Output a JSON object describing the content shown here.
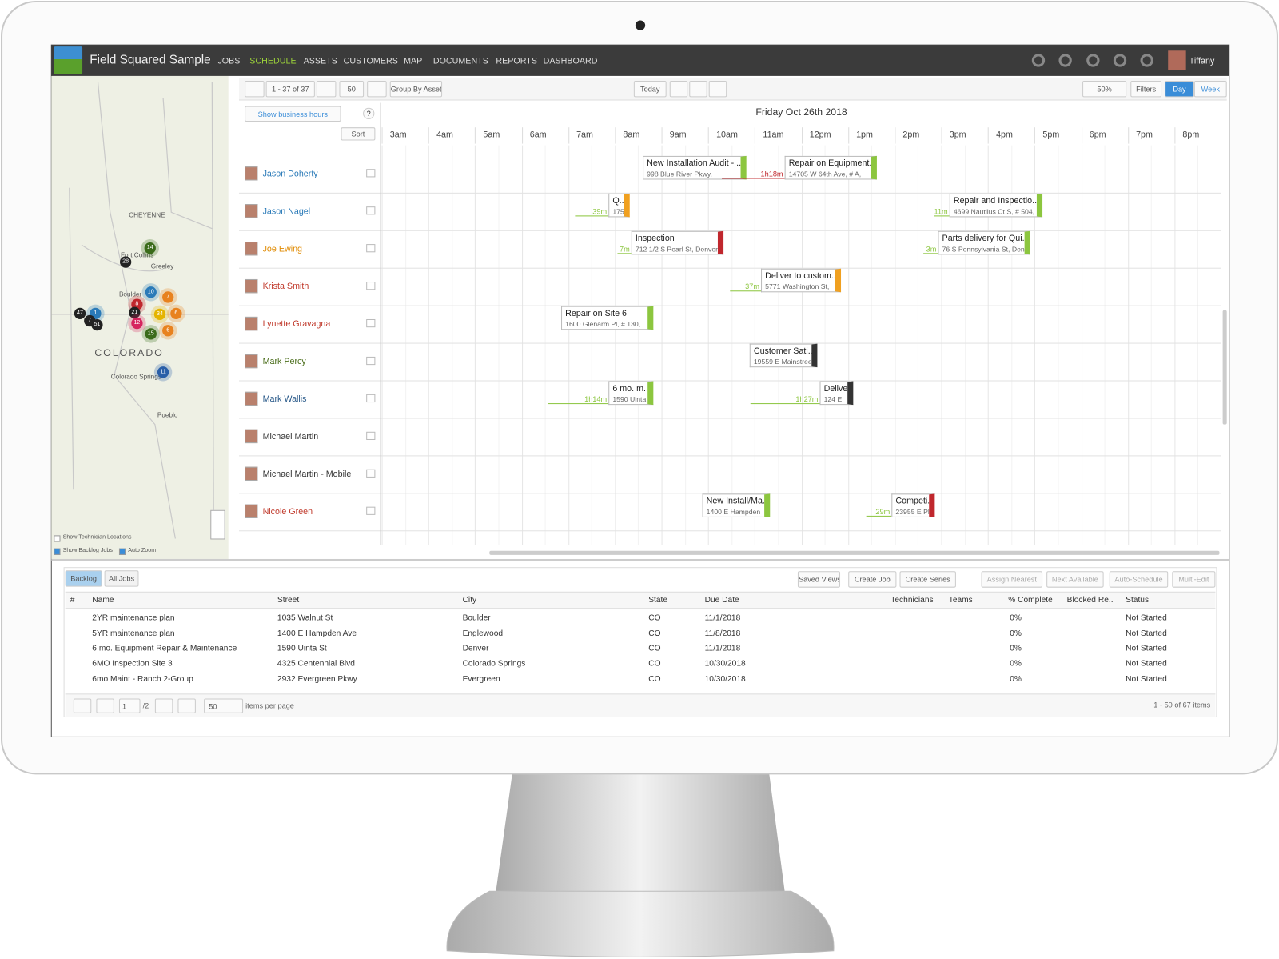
{
  "nav": {
    "brand": "Field Squared Sample",
    "items": [
      "JOBS",
      "SCHEDULE",
      "ASSETS",
      "CUSTOMERS",
      "MAP",
      "DOCUMENTS",
      "REPORTS",
      "DASHBOARD"
    ],
    "user": "Tiffany"
  },
  "map": {
    "places": [
      "CHEYENNE",
      "Fort Collins",
      "Greeley",
      "Boulder",
      "COLORADO",
      "Colorado Springs",
      "Pueblo"
    ],
    "clusters": [
      14,
      28,
      10,
      7,
      8,
      21,
      34,
      6,
      12,
      15,
      6,
      47,
      1,
      7,
      51,
      11
    ],
    "options": [
      "Show Technician Locations",
      "Show Backlog Jobs",
      "Auto Zoom"
    ]
  },
  "toolbar": {
    "range": "1 - 37 of 37",
    "page_size": 50,
    "group_by": "Group By Asset",
    "today": "Today",
    "zoom": "50%",
    "filters": "Filters",
    "views": [
      "Day",
      "Week"
    ]
  },
  "schedule": {
    "business_hours": "Show business hours",
    "help": "?",
    "sort": "Sort",
    "date": "Friday Oct 26th 2018",
    "hours": [
      "3am",
      "4am",
      "5am",
      "6am",
      "7am",
      "8am",
      "9am",
      "10am",
      "11am",
      "12pm",
      "1pm",
      "2pm",
      "3pm",
      "4pm",
      "5pm",
      "6pm",
      "7pm",
      "8pm"
    ],
    "technicians": [
      "Jason Doherty",
      "Jason Nagel",
      "Joe Ewing",
      "Krista Smith",
      "Lynette Gravagna",
      "Mark Percy",
      "Mark Wallis",
      "Michael Martin",
      "Michael Martin - Mobile",
      "Nicole Green"
    ],
    "jobs": [
      {
        "title": "New Installation Audit - ..",
        "address": "998 Blue River Pkwy,"
      },
      {
        "title": "Repair on Equipment..",
        "address": "14705 W 64th Ave, # A,",
        "travel": "1h18m"
      },
      {
        "title": "Q..",
        "address": "175",
        "travel": "39m"
      },
      {
        "title": "Repair and Inspectio..",
        "address": "4699 Nautilus Ct S, # 504,",
        "travel": "11m"
      },
      {
        "title": "Inspection",
        "address": "712 1/2 S Pearl St, Denver",
        "travel": "7m"
      },
      {
        "title": "Parts delivery for Qui..",
        "address": "76 S Pennsylvania St, Den",
        "travel": "3m"
      },
      {
        "title": "Deliver to custom..",
        "address": "5771 Washington St,",
        "travel": "37m"
      },
      {
        "title": "Repair on Site 6",
        "address": "1600 Glenarm Pl, # 130,"
      },
      {
        "title": "Customer Sati..",
        "address": "19559 E Mainstree"
      },
      {
        "title": "6 mo. m..",
        "address": "1590 Uinta",
        "travel": "1h14m"
      },
      {
        "title": "Delive..",
        "address": "124 E",
        "travel": "1h27m"
      },
      {
        "title": "New Install/Ma..",
        "address": "1400 E Hampden"
      },
      {
        "title": "Competi..",
        "address": "23955 E Pl",
        "travel": "29m"
      }
    ]
  },
  "backlog": {
    "tabs": [
      "Backlog",
      "All Jobs"
    ],
    "actions": [
      "Saved Views",
      "Create Job",
      "Create Series",
      "Assign Nearest",
      "Next Available",
      "Auto-Schedule",
      "Multi-Edit"
    ],
    "columns": [
      "#",
      "Name",
      "Street",
      "City",
      "State",
      "Due Date",
      "Technicians",
      "Teams",
      "% Complete",
      "Blocked Re..",
      "Status"
    ],
    "rows": [
      [
        "2YR maintenance plan",
        "1035 Walnut St",
        "Boulder",
        "CO",
        "11/1/2018",
        "0%",
        "Not Started"
      ],
      [
        "5YR maintenance plan",
        "1400 E Hampden Ave",
        "Englewood",
        "CO",
        "11/8/2018",
        "0%",
        "Not Started"
      ],
      [
        "6 mo. Equipment Repair & Maintenance",
        "1590 Uinta St",
        "Denver",
        "CO",
        "11/1/2018",
        "0%",
        "Not Started"
      ],
      [
        "6MO Inspection Site 3",
        "4325 Centennial Blvd",
        "Colorado Springs",
        "CO",
        "10/30/2018",
        "0%",
        "Not Started"
      ],
      [
        "6mo Maint - Ranch 2-Group",
        "2932 Evergreen Pkwy",
        "Evergreen",
        "CO",
        "10/30/2018",
        "0%",
        "Not Started"
      ]
    ],
    "pager": {
      "page": 1,
      "pages": "/2",
      "page_size": 50,
      "per_page": "items per page",
      "summary": "1 - 50 of 67 items"
    }
  }
}
